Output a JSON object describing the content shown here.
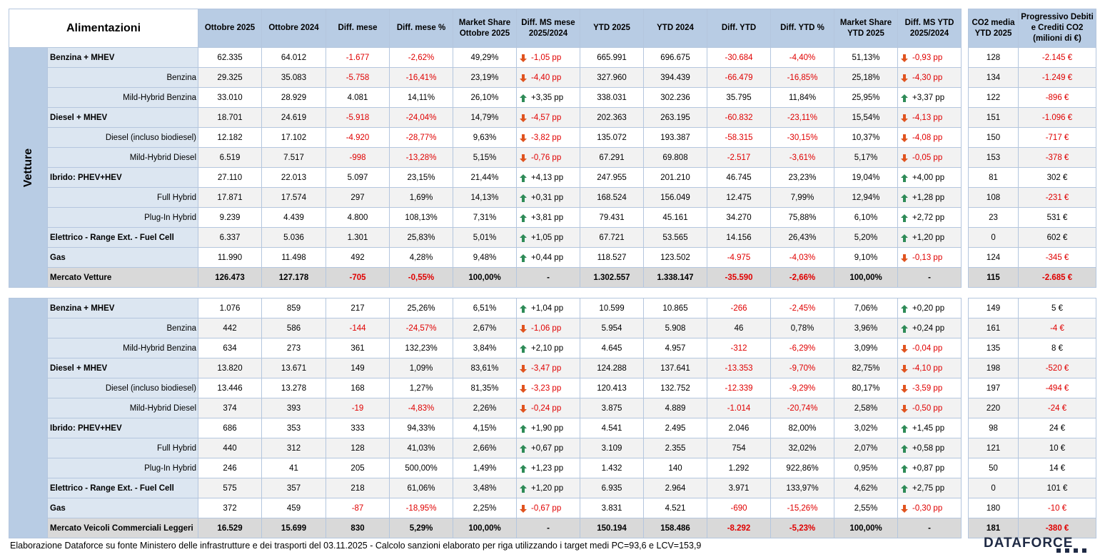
{
  "header": {
    "title": "Alimentazioni",
    "columns": [
      "Ottobre 2025",
      "Ottobre 2024",
      "Diff. mese",
      "Diff. mese %",
      "Market Share Ottobre 2025",
      "Diff. MS mese 2025/2024",
      "YTD 2025",
      "YTD 2024",
      "Diff. YTD",
      "Diff. YTD %",
      "Market Share YTD 2025",
      "Diff. MS YTD 2025/2024"
    ],
    "co2_columns": [
      "CO2 media YTD 2025",
      "Progressivo Debiti e Crediti CO2 (milioni di €)"
    ]
  },
  "sections": [
    {
      "name": "Vetture",
      "rows": [
        {
          "label": "Benzina + MHEV",
          "cat": true,
          "v": [
            "62.335",
            "64.012",
            "-1.677",
            "-2,62%",
            "49,29%",
            "-1,05 pp",
            "665.991",
            "696.675",
            "-30.684",
            "-4,40%",
            "51,13%",
            "-0,93 pp"
          ],
          "co2": [
            "128",
            "-2.145 €"
          ]
        },
        {
          "label": "Benzina",
          "cat": false,
          "v": [
            "29.325",
            "35.083",
            "-5.758",
            "-16,41%",
            "23,19%",
            "-4,40 pp",
            "327.960",
            "394.439",
            "-66.479",
            "-16,85%",
            "25,18%",
            "-4,30 pp"
          ],
          "co2": [
            "134",
            "-1.249 €"
          ]
        },
        {
          "label": "Mild-Hybrid Benzina",
          "cat": false,
          "v": [
            "33.010",
            "28.929",
            "4.081",
            "14,11%",
            "26,10%",
            "+3,35 pp",
            "338.031",
            "302.236",
            "35.795",
            "11,84%",
            "25,95%",
            "+3,37 pp"
          ],
          "co2": [
            "122",
            "-896 €"
          ]
        },
        {
          "label": "Diesel + MHEV",
          "cat": true,
          "v": [
            "18.701",
            "24.619",
            "-5.918",
            "-24,04%",
            "14,79%",
            "-4,57 pp",
            "202.363",
            "263.195",
            "-60.832",
            "-23,11%",
            "15,54%",
            "-4,13 pp"
          ],
          "co2": [
            "151",
            "-1.096 €"
          ]
        },
        {
          "label": "Diesel (incluso biodiesel)",
          "cat": false,
          "v": [
            "12.182",
            "17.102",
            "-4.920",
            "-28,77%",
            "9,63%",
            "-3,82 pp",
            "135.072",
            "193.387",
            "-58.315",
            "-30,15%",
            "10,37%",
            "-4,08 pp"
          ],
          "co2": [
            "150",
            "-717 €"
          ]
        },
        {
          "label": "Mild-Hybrid Diesel",
          "cat": false,
          "v": [
            "6.519",
            "7.517",
            "-998",
            "-13,28%",
            "5,15%",
            "-0,76 pp",
            "67.291",
            "69.808",
            "-2.517",
            "-3,61%",
            "5,17%",
            "-0,05 pp"
          ],
          "co2": [
            "153",
            "-378 €"
          ]
        },
        {
          "label": "Ibrido: PHEV+HEV",
          "cat": true,
          "v": [
            "27.110",
            "22.013",
            "5.097",
            "23,15%",
            "21,44%",
            "+4,13 pp",
            "247.955",
            "201.210",
            "46.745",
            "23,23%",
            "19,04%",
            "+4,00 pp"
          ],
          "co2": [
            "81",
            "302 €"
          ]
        },
        {
          "label": "Full Hybrid",
          "cat": false,
          "v": [
            "17.871",
            "17.574",
            "297",
            "1,69%",
            "14,13%",
            "+0,31 pp",
            "168.524",
            "156.049",
            "12.475",
            "7,99%",
            "12,94%",
            "+1,28 pp"
          ],
          "co2": [
            "108",
            "-231 €"
          ]
        },
        {
          "label": "Plug-In Hybrid",
          "cat": false,
          "v": [
            "9.239",
            "4.439",
            "4.800",
            "108,13%",
            "7,31%",
            "+3,81 pp",
            "79.431",
            "45.161",
            "34.270",
            "75,88%",
            "6,10%",
            "+2,72 pp"
          ],
          "co2": [
            "23",
            "531 €"
          ]
        },
        {
          "label": "Elettrico - Range Ext. - Fuel Cell",
          "cat": true,
          "v": [
            "6.337",
            "5.036",
            "1.301",
            "25,83%",
            "5,01%",
            "+1,05 pp",
            "67.721",
            "53.565",
            "14.156",
            "26,43%",
            "5,20%",
            "+1,20 pp"
          ],
          "co2": [
            "0",
            "602 €"
          ]
        },
        {
          "label": "Gas",
          "cat": true,
          "v": [
            "11.990",
            "11.498",
            "492",
            "4,28%",
            "9,48%",
            "+0,44 pp",
            "118.527",
            "123.502",
            "-4.975",
            "-4,03%",
            "9,10%",
            "-0,13 pp"
          ],
          "co2": [
            "124",
            "-345 €"
          ]
        },
        {
          "label": "Mercato Vetture",
          "total": true,
          "v": [
            "126.473",
            "127.178",
            "-705",
            "-0,55%",
            "100,00%",
            "-",
            "1.302.557",
            "1.338.147",
            "-35.590",
            "-2,66%",
            "100,00%",
            "-"
          ],
          "co2": [
            "115",
            "-2.685 €"
          ]
        }
      ]
    },
    {
      "name": "Veicoli Commerciali Leggeri",
      "rows": [
        {
          "label": "Benzina + MHEV",
          "cat": true,
          "v": [
            "1.076",
            "859",
            "217",
            "25,26%",
            "6,51%",
            "+1,04 pp",
            "10.599",
            "10.865",
            "-266",
            "-2,45%",
            "7,06%",
            "+0,20 pp"
          ],
          "co2": [
            "149",
            "5 €"
          ]
        },
        {
          "label": "Benzina",
          "cat": false,
          "v": [
            "442",
            "586",
            "-144",
            "-24,57%",
            "2,67%",
            "-1,06 pp",
            "5.954",
            "5.908",
            "46",
            "0,78%",
            "3,96%",
            "+0,24 pp"
          ],
          "co2": [
            "161",
            "-4 €"
          ]
        },
        {
          "label": "Mild-Hybrid Benzina",
          "cat": false,
          "v": [
            "634",
            "273",
            "361",
            "132,23%",
            "3,84%",
            "+2,10 pp",
            "4.645",
            "4.957",
            "-312",
            "-6,29%",
            "3,09%",
            "-0,04 pp"
          ],
          "co2": [
            "135",
            "8 €"
          ]
        },
        {
          "label": "Diesel + MHEV",
          "cat": true,
          "v": [
            "13.820",
            "13.671",
            "149",
            "1,09%",
            "83,61%",
            "-3,47 pp",
            "124.288",
            "137.641",
            "-13.353",
            "-9,70%",
            "82,75%",
            "-4,10 pp"
          ],
          "co2": [
            "198",
            "-520 €"
          ]
        },
        {
          "label": "Diesel (incluso biodiesel)",
          "cat": false,
          "v": [
            "13.446",
            "13.278",
            "168",
            "1,27%",
            "81,35%",
            "-3,23 pp",
            "120.413",
            "132.752",
            "-12.339",
            "-9,29%",
            "80,17%",
            "-3,59 pp"
          ],
          "co2": [
            "197",
            "-494 €"
          ]
        },
        {
          "label": "Mild-Hybrid Diesel",
          "cat": false,
          "v": [
            "374",
            "393",
            "-19",
            "-4,83%",
            "2,26%",
            "-0,24 pp",
            "3.875",
            "4.889",
            "-1.014",
            "-20,74%",
            "2,58%",
            "-0,50 pp"
          ],
          "co2": [
            "220",
            "-24 €"
          ]
        },
        {
          "label": "Ibrido: PHEV+HEV",
          "cat": true,
          "v": [
            "686",
            "353",
            "333",
            "94,33%",
            "4,15%",
            "+1,90 pp",
            "4.541",
            "2.495",
            "2.046",
            "82,00%",
            "3,02%",
            "+1,45 pp"
          ],
          "co2": [
            "98",
            "24 €"
          ]
        },
        {
          "label": "Full Hybrid",
          "cat": false,
          "v": [
            "440",
            "312",
            "128",
            "41,03%",
            "2,66%",
            "+0,67 pp",
            "3.109",
            "2.355",
            "754",
            "32,02%",
            "2,07%",
            "+0,58 pp"
          ],
          "co2": [
            "121",
            "10 €"
          ]
        },
        {
          "label": "Plug-In Hybrid",
          "cat": false,
          "v": [
            "246",
            "41",
            "205",
            "500,00%",
            "1,49%",
            "+1,23 pp",
            "1.432",
            "140",
            "1.292",
            "922,86%",
            "0,95%",
            "+0,87 pp"
          ],
          "co2": [
            "50",
            "14 €"
          ]
        },
        {
          "label": "Elettrico - Range Ext. - Fuel Cell",
          "cat": true,
          "v": [
            "575",
            "357",
            "218",
            "61,06%",
            "3,48%",
            "+1,20 pp",
            "6.935",
            "2.964",
            "3.971",
            "133,97%",
            "4,62%",
            "+2,75 pp"
          ],
          "co2": [
            "0",
            "101 €"
          ]
        },
        {
          "label": "Gas",
          "cat": true,
          "v": [
            "372",
            "459",
            "-87",
            "-18,95%",
            "2,25%",
            "-0,67 pp",
            "3.831",
            "4.521",
            "-690",
            "-15,26%",
            "2,55%",
            "-0,30 pp"
          ],
          "co2": [
            "180",
            "-10 €"
          ]
        },
        {
          "label": "Mercato Veicoli Commerciali Leggeri",
          "total": true,
          "v": [
            "16.529",
            "15.699",
            "830",
            "5,29%",
            "100,00%",
            "-",
            "150.194",
            "158.486",
            "-8.292",
            "-5,23%",
            "100,00%",
            "-"
          ],
          "co2": [
            "181",
            "-380 €"
          ]
        }
      ]
    }
  ],
  "footer": "Elaborazione Dataforce su fonte Ministero delle infrastrutture e dei trasporti del 03.11.2025 - Calcolo sanzioni elaborato per riga utilizzando i target medi PC=93,6 e LCV=153,9",
  "logo": "DATAFORCE",
  "colors": {
    "header_bg": "#b8cce4",
    "label_bg": "#dce6f1",
    "negative": "#e00000",
    "arrow_up": "#2e8b57",
    "arrow_down": "#e0531f",
    "total_bg": "#d9d9d9"
  }
}
